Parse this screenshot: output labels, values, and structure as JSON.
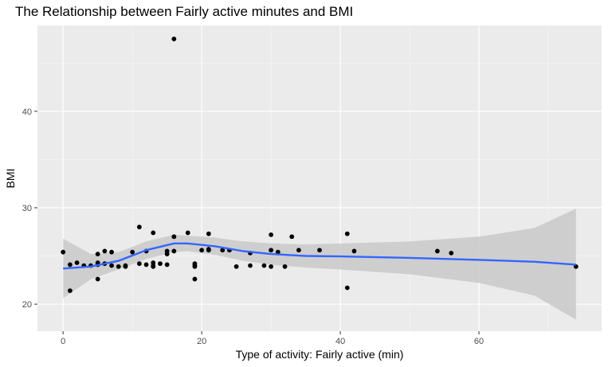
{
  "chart_data": {
    "type": "scatter",
    "title": "The Relationship between Fairly active minutes and BMI",
    "xlabel": "Type of activity: Fairly active (min)",
    "ylabel": "BMI",
    "xlim": [
      -3.7,
      77.7
    ],
    "ylim": [
      17.2,
      48.9
    ],
    "xticks": [
      0,
      20,
      40,
      60
    ],
    "yticks": [
      20,
      30,
      40
    ],
    "xminor": [
      10,
      30,
      50,
      70
    ],
    "yminor": [
      25,
      35,
      45
    ],
    "grid": true,
    "legend": "none",
    "colors": {
      "panel": "#ebebeb",
      "grid_major": "#ffffff",
      "point": "#000000",
      "smooth_line": "#3366ff",
      "ribbon": "#c9c9c9"
    },
    "points": [
      {
        "x": 0,
        "y": 25.4
      },
      {
        "x": 1,
        "y": 21.4
      },
      {
        "x": 1,
        "y": 24.1
      },
      {
        "x": 2,
        "y": 24.3
      },
      {
        "x": 3,
        "y": 24.0
      },
      {
        "x": 4,
        "y": 24.0
      },
      {
        "x": 5,
        "y": 22.6
      },
      {
        "x": 5,
        "y": 24.1
      },
      {
        "x": 5,
        "y": 24.3
      },
      {
        "x": 5,
        "y": 25.2
      },
      {
        "x": 6,
        "y": 25.5
      },
      {
        "x": 6,
        "y": 24.2
      },
      {
        "x": 7,
        "y": 25.4
      },
      {
        "x": 7,
        "y": 24.0
      },
      {
        "x": 8,
        "y": 23.9
      },
      {
        "x": 9,
        "y": 23.9
      },
      {
        "x": 9,
        "y": 24.0
      },
      {
        "x": 10,
        "y": 25.4
      },
      {
        "x": 11,
        "y": 28.0
      },
      {
        "x": 11,
        "y": 24.2
      },
      {
        "x": 12,
        "y": 24.1
      },
      {
        "x": 12,
        "y": 25.5
      },
      {
        "x": 13,
        "y": 27.4
      },
      {
        "x": 13,
        "y": 24.0
      },
      {
        "x": 13,
        "y": 24.3
      },
      {
        "x": 13,
        "y": 23.9
      },
      {
        "x": 14,
        "y": 24.2
      },
      {
        "x": 15,
        "y": 25.5
      },
      {
        "x": 15,
        "y": 25.2
      },
      {
        "x": 15,
        "y": 24.1
      },
      {
        "x": 16,
        "y": 47.5
      },
      {
        "x": 16,
        "y": 27.0
      },
      {
        "x": 16,
        "y": 25.5
      },
      {
        "x": 18,
        "y": 27.4
      },
      {
        "x": 19,
        "y": 24.0
      },
      {
        "x": 19,
        "y": 23.9
      },
      {
        "x": 19,
        "y": 24.2
      },
      {
        "x": 19,
        "y": 22.6
      },
      {
        "x": 20,
        "y": 25.6
      },
      {
        "x": 21,
        "y": 27.3
      },
      {
        "x": 21,
        "y": 25.6
      },
      {
        "x": 21,
        "y": 25.7
      },
      {
        "x": 23,
        "y": 25.6
      },
      {
        "x": 24,
        "y": 25.6
      },
      {
        "x": 25,
        "y": 23.9
      },
      {
        "x": 27,
        "y": 25.3
      },
      {
        "x": 27,
        "y": 24.0
      },
      {
        "x": 29,
        "y": 24.0
      },
      {
        "x": 30,
        "y": 27.2
      },
      {
        "x": 30,
        "y": 25.6
      },
      {
        "x": 30,
        "y": 23.9
      },
      {
        "x": 31,
        "y": 25.4
      },
      {
        "x": 32,
        "y": 23.9
      },
      {
        "x": 33,
        "y": 27.0
      },
      {
        "x": 34,
        "y": 25.6
      },
      {
        "x": 37,
        "y": 25.6
      },
      {
        "x": 41,
        "y": 27.3
      },
      {
        "x": 41,
        "y": 21.7
      },
      {
        "x": 42,
        "y": 25.5
      },
      {
        "x": 54,
        "y": 25.5
      },
      {
        "x": 56,
        "y": 25.3
      },
      {
        "x": 74,
        "y": 23.9
      }
    ],
    "smooth": {
      "method": "loess",
      "fit": [
        [
          0,
          23.7
        ],
        [
          4,
          23.9
        ],
        [
          8,
          24.5
        ],
        [
          12,
          25.6
        ],
        [
          16,
          26.3
        ],
        [
          18,
          26.3
        ],
        [
          22,
          26.0
        ],
        [
          26,
          25.5
        ],
        [
          30,
          25.2
        ],
        [
          35,
          25.0
        ],
        [
          40,
          24.95
        ],
        [
          50,
          24.8
        ],
        [
          60,
          24.6
        ],
        [
          68,
          24.4
        ],
        [
          74,
          24.1
        ]
      ],
      "lower": [
        [
          0,
          20.6
        ],
        [
          4,
          22.6
        ],
        [
          8,
          23.6
        ],
        [
          12,
          24.7
        ],
        [
          16,
          25.4
        ],
        [
          18,
          25.5
        ],
        [
          22,
          25.1
        ],
        [
          26,
          24.5
        ],
        [
          30,
          24.1
        ],
        [
          35,
          23.8
        ],
        [
          40,
          23.6
        ],
        [
          50,
          23.1
        ],
        [
          60,
          22.2
        ],
        [
          68,
          20.9
        ],
        [
          74,
          18.4
        ]
      ],
      "upper": [
        [
          0,
          26.8
        ],
        [
          4,
          25.2
        ],
        [
          8,
          25.4
        ],
        [
          12,
          26.5
        ],
        [
          16,
          27.2
        ],
        [
          18,
          27.1
        ],
        [
          22,
          26.9
        ],
        [
          26,
          26.5
        ],
        [
          30,
          26.3
        ],
        [
          35,
          26.2
        ],
        [
          40,
          26.3
        ],
        [
          50,
          26.5
        ],
        [
          60,
          27.0
        ],
        [
          68,
          27.9
        ],
        [
          74,
          29.9
        ]
      ]
    }
  }
}
